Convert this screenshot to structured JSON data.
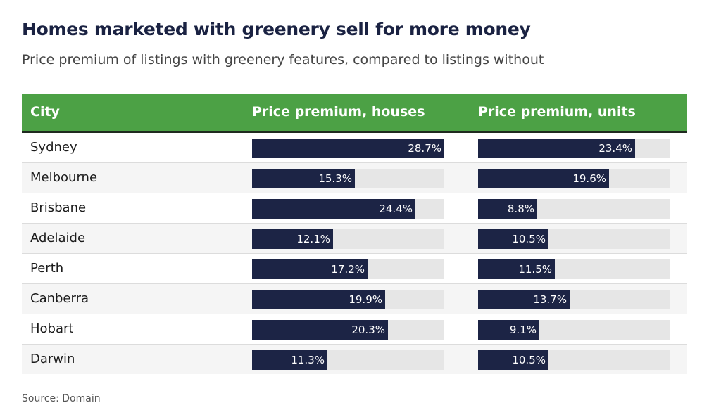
{
  "chart_data": {
    "type": "bar",
    "title": "Homes marketed with greenery sell for more money",
    "subtitle": "Price premium of listings with greenery features, compared to listings without",
    "source": "Source: Domain",
    "column_headers": [
      "City",
      "Price premium, houses",
      "Price premium, units"
    ],
    "xlim": [
      0,
      28.7
    ],
    "categories": [
      "Sydney",
      "Melbourne",
      "Brisbane",
      "Adelaide",
      "Perth",
      "Canberra",
      "Hobart",
      "Darwin"
    ],
    "series": [
      {
        "name": "Price premium, houses",
        "values": [
          28.7,
          15.3,
          24.4,
          12.1,
          17.2,
          19.9,
          20.3,
          11.3
        ],
        "labels": [
          "28.7%",
          "15.3%",
          "24.4%",
          "12.1%",
          "17.2%",
          "19.9%",
          "20.3%",
          "11.3%"
        ]
      },
      {
        "name": "Price premium, units",
        "values": [
          23.4,
          19.6,
          8.8,
          10.5,
          11.5,
          13.7,
          9.1,
          10.5
        ],
        "labels": [
          "23.4%",
          "19.6%",
          "8.8%",
          "10.5%",
          "11.5%",
          "13.7%",
          "9.1%",
          "10.5%"
        ]
      }
    ]
  },
  "colors": {
    "header": "#4ca145",
    "bar": "#1c2445",
    "track": "#e6e6e6"
  }
}
